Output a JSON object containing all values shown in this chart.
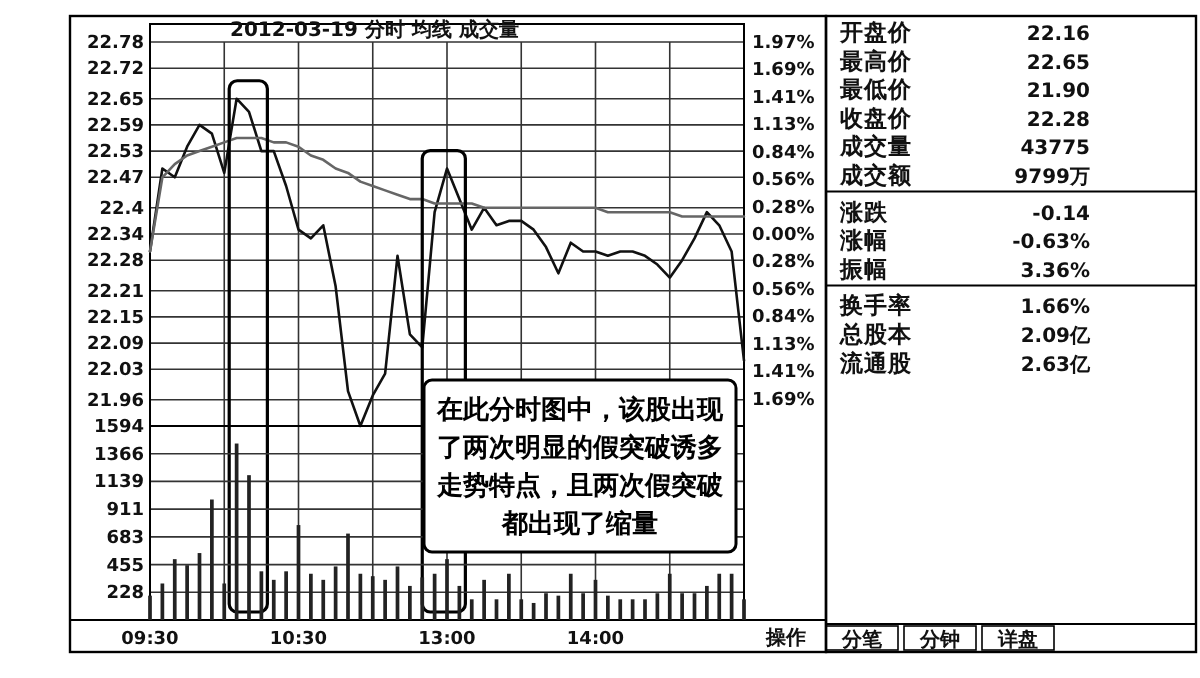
{
  "chart_data": [
    {
      "type": "line",
      "title": "2012-03-19 分时 均线 成交量",
      "categories": [
        null,
        null,
        null,
        null,
        null,
        null,
        null,
        null,
        null,
        null,
        null,
        null,
        null,
        null,
        null,
        null,
        null,
        null,
        null,
        null,
        null,
        null,
        null,
        null,
        null,
        null,
        null,
        null,
        null,
        null,
        null,
        null,
        null,
        null,
        null,
        null,
        null,
        null,
        null,
        null,
        null,
        null,
        null,
        null,
        null,
        null,
        null,
        null,
        null
      ],
      "ylim": [
        21.9,
        22.78
      ],
      "yticks": [
        22.78,
        22.72,
        22.65,
        22.59,
        22.53,
        22.47,
        22.4,
        22.34,
        22.28,
        22.21,
        22.15,
        22.09,
        22.03,
        21.96
      ],
      "y2lim": [
        -1.97,
        1.97
      ],
      "y2ticks": [
        {
          "value": 1.97,
          "label": "1.97%"
        },
        {
          "value": 1.69,
          "label": "1.69%"
        },
        {
          "value": 1.41,
          "label": "1.41%"
        },
        {
          "value": 1.13,
          "label": "1.13%"
        },
        {
          "value": 0.84,
          "label": "0.84%"
        },
        {
          "value": 0.56,
          "label": "0.56%"
        },
        {
          "value": 0.28,
          "label": "0.28%"
        },
        {
          "value": 0,
          "label": "0.00%"
        },
        {
          "value": -0.28,
          "label": "0.28%"
        },
        {
          "value": -0.56,
          "label": "0.56%"
        },
        {
          "value": -0.84,
          "label": "0.84%"
        },
        {
          "value": -1.13,
          "label": "1.13%"
        },
        {
          "value": -1.41,
          "label": "1.41%"
        },
        {
          "value": -1.69,
          "label": "1.69%"
        }
      ],
      "tick_labels": "y",
      "grid": true,
      "marker": "none",
      "series": [
        {
          "color": "#111111",
          "values": [
            22.3,
            22.49,
            22.47,
            22.54,
            22.59,
            22.57,
            22.48,
            22.65,
            22.62,
            22.53,
            22.53,
            22.45,
            22.35,
            22.33,
            22.36,
            22.22,
            21.98,
            21.9,
            21.97,
            22.02,
            22.29,
            22.11,
            22.08,
            22.39,
            22.49,
            22.42,
            22.35,
            22.4,
            22.36,
            22.37,
            22.37,
            22.35,
            22.31,
            22.25,
            22.32,
            22.3,
            22.3,
            22.29,
            22.3,
            22.3,
            22.29,
            22.27,
            22.24,
            22.28,
            22.33,
            22.39,
            22.36,
            22.3,
            22.05
          ]
        },
        {
          "color": "#666666",
          "values": [
            22.3,
            22.47,
            22.5,
            22.52,
            22.53,
            22.54,
            22.55,
            22.56,
            22.56,
            22.56,
            22.55,
            22.55,
            22.54,
            22.52,
            22.51,
            22.49,
            22.48,
            22.46,
            22.45,
            22.44,
            22.43,
            22.42,
            22.42,
            22.41,
            22.41,
            22.41,
            22.41,
            22.4,
            22.4,
            22.4,
            22.4,
            22.4,
            22.4,
            22.4,
            22.4,
            22.4,
            22.4,
            22.39,
            22.39,
            22.39,
            22.39,
            22.39,
            22.39,
            22.38,
            22.38,
            22.38,
            22.38,
            22.38,
            22.38
          ]
        }
      ]
    },
    {
      "type": "bar",
      "categories": [
        "09:30",
        null,
        null,
        null,
        null,
        null,
        null,
        null,
        null,
        null,
        null,
        null,
        "10:30",
        null,
        null,
        null,
        null,
        null,
        null,
        null,
        null,
        null,
        null,
        null,
        "13:00",
        null,
        null,
        null,
        null,
        null,
        null,
        null,
        null,
        null,
        null,
        null,
        "14:00",
        null,
        null,
        null,
        null,
        null,
        null,
        null,
        null,
        null,
        null,
        null,
        null
      ],
      "ylim": [
        0,
        1594
      ],
      "yticks": [
        1594,
        1366,
        1139,
        911,
        683,
        455,
        228
      ],
      "grid": true,
      "annotations": [
        "在此分时图中，该股出现了两次明显的假突破诱多走势特点，且两次假突破都出现了缩量"
      ],
      "series": [
        {
          "color": "#222222",
          "values": [
            200,
            300,
            500,
            450,
            550,
            990,
            300,
            1450,
            1190,
            400,
            330,
            400,
            780,
            380,
            330,
            440,
            710,
            380,
            360,
            330,
            440,
            280,
            350,
            380,
            500,
            280,
            170,
            330,
            170,
            380,
            170,
            140,
            220,
            200,
            380,
            220,
            330,
            200,
            170,
            170,
            170,
            220,
            380,
            220,
            220,
            280,
            380,
            380,
            170
          ]
        }
      ]
    },
    {
      "type": "other",
      "annotations": [
        "开盘价",
        "22.16",
        "最高价",
        "22.65",
        "最低价",
        "21.90",
        "收盘价",
        "22.28",
        "成交量",
        "43775",
        "成交额",
        "9799万",
        "涨跌",
        "-0.14",
        "涨幅",
        "-0.63%",
        "振幅",
        "3.36%",
        "换手率",
        "1.66%",
        "总股本",
        "2.09亿",
        "流通股",
        "2.63亿",
        "操作",
        "分笔",
        "分钟",
        "详盘"
      ]
    }
  ]
}
